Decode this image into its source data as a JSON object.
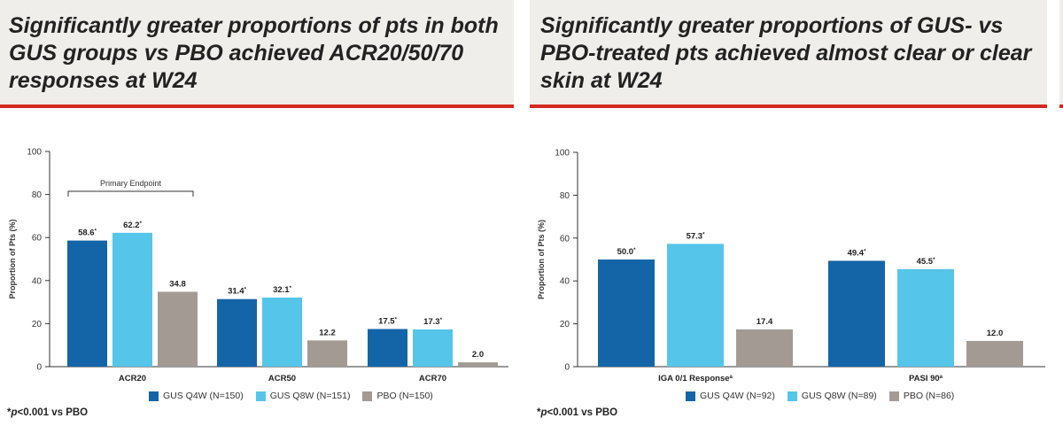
{
  "colors": {
    "gus_q4w": "#1465a8",
    "gus_q8w": "#55c5ea",
    "pbo": "#a49a94",
    "accent": "#d42a20",
    "header_bg": "#f0eeea"
  },
  "left_panel": {
    "title_line1": "Significantly greater proportions of pts in both",
    "title_line2": "GUS groups vs PBO achieved ACR20/50/70",
    "title_line3": "responses at W24",
    "legend": [
      "GUS Q4W (N=150)",
      "GUS Q8W (N=151)",
      "PBO (N=150)"
    ],
    "footnote_symbol": "*",
    "footnote_p": "p",
    "footnote_rest": "<0.001 vs PBO"
  },
  "right_panel": {
    "title_line1": "Significantly greater proportions of GUS- vs",
    "title_line2": "PBO-treated pts achieved almost clear or clear",
    "title_line3": "skin at W24",
    "legend": [
      "GUS Q4W (N=92)",
      "GUS Q8W (N=89)",
      "PBO (N=86)"
    ],
    "footnote_symbol": "*",
    "footnote_p": "p",
    "footnote_rest": "<0.001 vs PBO"
  },
  "chart_data": [
    {
      "type": "bar",
      "ylabel": "Proportion of Pts (%)",
      "xlabel": "",
      "ylim": [
        0,
        100
      ],
      "yticks": [
        0,
        20,
        40,
        60,
        80,
        100
      ],
      "categories": [
        "ACR20",
        "ACR50",
        "ACR70"
      ],
      "annotation": "Primary Endpoint",
      "series": [
        {
          "name": "GUS Q4W (N=150)",
          "values": [
            58.6,
            31.4,
            17.5
          ],
          "labels": [
            "58.6*",
            "31.4*",
            "17.5*"
          ]
        },
        {
          "name": "GUS Q8W (N=151)",
          "values": [
            62.2,
            32.1,
            17.3
          ],
          "labels": [
            "62.2*",
            "32.1*",
            "17.3*"
          ]
        },
        {
          "name": "PBO (N=150)",
          "values": [
            34.8,
            12.2,
            2.0
          ],
          "labels": [
            "34.8",
            "12.2",
            "2.0"
          ]
        }
      ]
    },
    {
      "type": "bar",
      "ylabel": "Proportion of Pts (%)",
      "xlabel": "",
      "ylim": [
        0,
        100
      ],
      "yticks": [
        0,
        20,
        40,
        60,
        80,
        100
      ],
      "categories": [
        "IGA 0/1 Response",
        "PASI 90"
      ],
      "category_superscripts": [
        "a",
        "a"
      ],
      "series": [
        {
          "name": "GUS Q4W (N=92)",
          "values": [
            50.0,
            49.4
          ],
          "labels": [
            "50.0*",
            "49.4*"
          ]
        },
        {
          "name": "GUS Q8W (N=89)",
          "values": [
            57.3,
            45.5
          ],
          "labels": [
            "57.3*",
            "45.5*"
          ]
        },
        {
          "name": "PBO (N=86)",
          "values": [
            17.4,
            12.0
          ],
          "labels": [
            "17.4",
            "12.0"
          ]
        }
      ]
    }
  ]
}
